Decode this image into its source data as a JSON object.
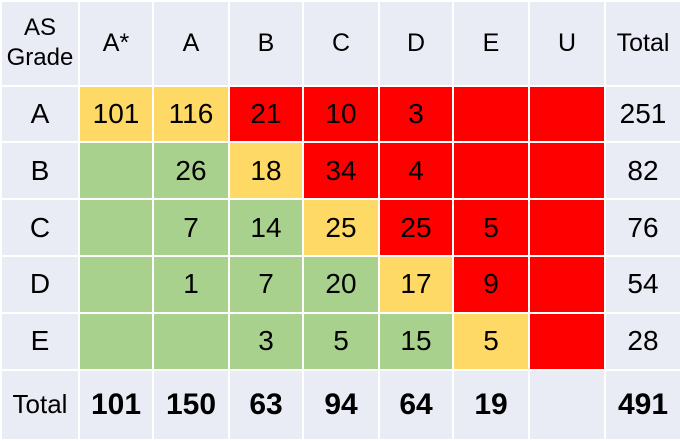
{
  "table": {
    "header": [
      "AS Grade",
      "A*",
      "A",
      "B",
      "C",
      "D",
      "E",
      "U",
      "Total"
    ],
    "rows": [
      [
        "A",
        101,
        116,
        21,
        10,
        3,
        null,
        null,
        251
      ],
      [
        "B",
        null,
        26,
        18,
        34,
        4,
        null,
        null,
        82
      ],
      [
        "C",
        null,
        7,
        14,
        25,
        25,
        5,
        null,
        76
      ],
      [
        "D",
        null,
        1,
        7,
        20,
        17,
        9,
        null,
        54
      ],
      [
        "E",
        null,
        null,
        3,
        5,
        15,
        5,
        null,
        28
      ]
    ],
    "total_row": [
      "Total",
      101,
      150,
      63,
      94,
      64,
      19,
      null,
      491
    ]
  }
}
